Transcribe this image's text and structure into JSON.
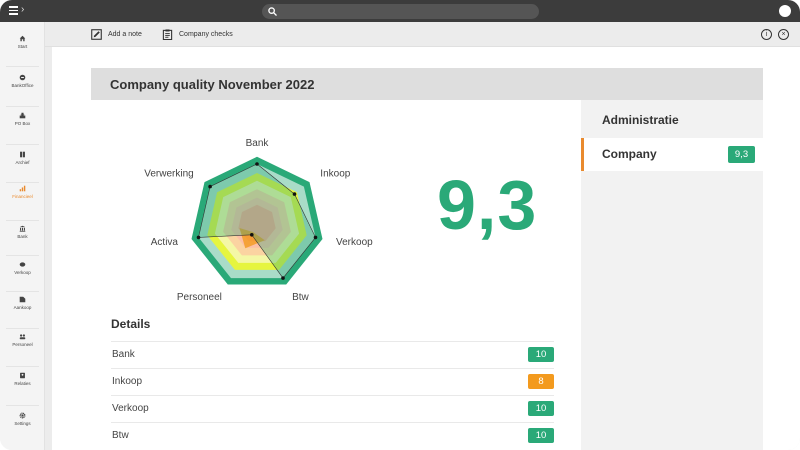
{
  "colors": {
    "accent": "#e98a2e",
    "good": "#2aa978",
    "warn": "#f39a1e"
  },
  "sidebar": {
    "items": [
      {
        "label": "Start",
        "icon": "home-icon",
        "active": false
      },
      {
        "label": "BankOffice",
        "icon": "bankoffice-icon",
        "active": false
      },
      {
        "label": "PO Box",
        "icon": "inbox-icon",
        "active": false
      },
      {
        "label": "Archief",
        "icon": "archive-icon",
        "active": false
      },
      {
        "label": "Financieel",
        "icon": "chart-icon",
        "active": true
      },
      {
        "label": "Bank",
        "icon": "bank-icon",
        "active": false
      },
      {
        "label": "Verkoop",
        "icon": "sales-icon",
        "active": false
      },
      {
        "label": "Aankoop",
        "icon": "purchase-icon",
        "active": false
      },
      {
        "label": "Personeel",
        "icon": "people-icon",
        "active": false
      },
      {
        "label": "Relaties",
        "icon": "contacts-icon",
        "active": false
      },
      {
        "label": "Settings",
        "icon": "gear-icon",
        "active": false
      }
    ]
  },
  "toolbar": {
    "add_note_label": "Add a note",
    "company_checks_label": "Company checks"
  },
  "main": {
    "title": "Company quality November 2022",
    "score": "9,3",
    "details_title": "Details",
    "details": [
      {
        "name": "Bank",
        "value": "10",
        "status": "good"
      },
      {
        "name": "Inkoop",
        "value": "8",
        "status": "warn"
      },
      {
        "name": "Verkoop",
        "value": "10",
        "status": "good"
      },
      {
        "name": "Btw",
        "value": "10",
        "status": "good"
      }
    ]
  },
  "radar": {
    "axes": [
      "Bank",
      "Inkoop",
      "Verkoop",
      "Btw",
      "Personeel",
      "Activa",
      "Verwerking"
    ],
    "scores": [
      10,
      8,
      10,
      10,
      2,
      10,
      10
    ],
    "max": 10
  },
  "administratie": {
    "title": "Administratie",
    "items": [
      {
        "name": "Company",
        "score": "9,3"
      }
    ]
  }
}
